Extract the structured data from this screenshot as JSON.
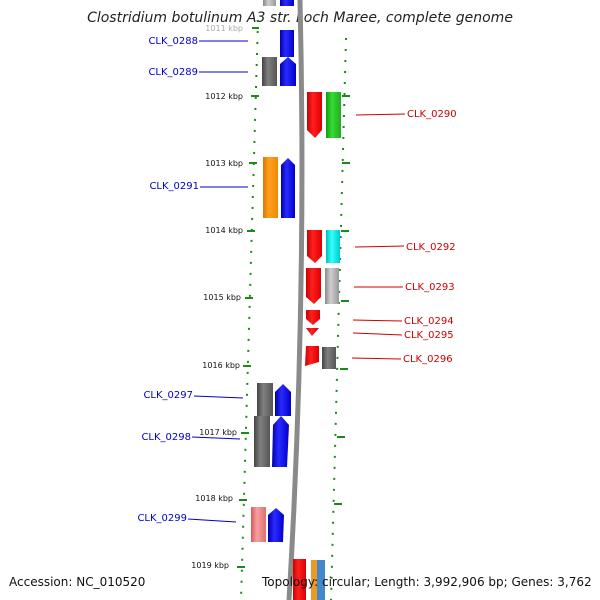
{
  "title": "Clostridium botulinum A3 str. Loch Maree, complete genome",
  "footer": {
    "accession": "Accession: NC_010520",
    "stats": "Topology: circular; Length: 3,992,906 bp; Genes: 3,762"
  },
  "colors": {
    "backbone": "#8a8a8a",
    "tick": "#1a8a1a",
    "left_label": "#0000cc",
    "right_label": "#cc0000"
  },
  "ticks": [
    "1011 kbp",
    "1012 kbp",
    "1013 kbp",
    "1014 kbp",
    "1015 kbp",
    "1016 kbp",
    "1017 kbp",
    "1018 kbp",
    "1019 kbp"
  ],
  "left_genes": [
    {
      "label": "CLK_0288"
    },
    {
      "label": "CLK_0289"
    },
    {
      "label": "CLK_0291"
    },
    {
      "label": "CLK_0297"
    },
    {
      "label": "CLK_0298"
    },
    {
      "label": "CLK_0299"
    }
  ],
  "right_genes": [
    {
      "label": "CLK_0290"
    },
    {
      "label": "CLK_0292"
    },
    {
      "label": "CLK_0293"
    },
    {
      "label": "CLK_0294"
    },
    {
      "label": "CLK_0295"
    },
    {
      "label": "CLK_0296"
    }
  ]
}
